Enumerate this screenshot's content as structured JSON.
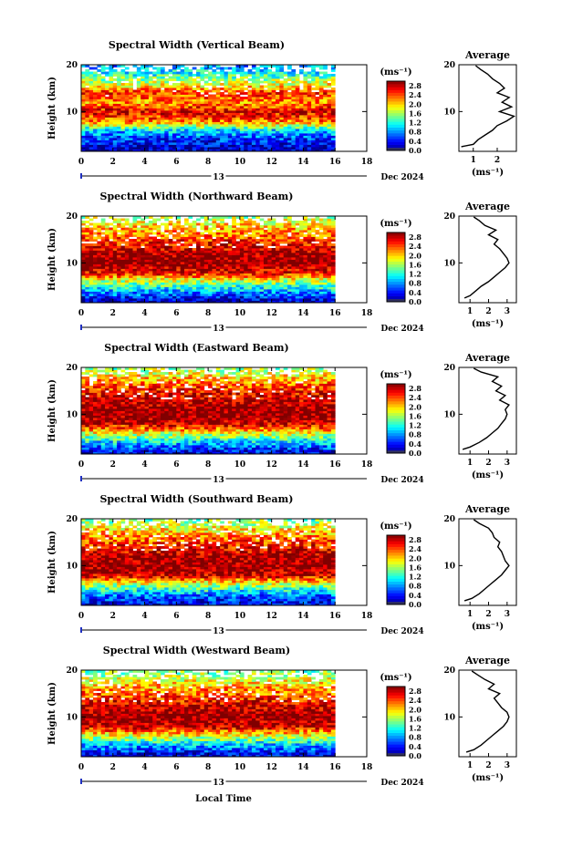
{
  "figure": {
    "xlabel": "Local Time",
    "ylabel": "Height (km)",
    "day_label": "13",
    "date_label": "Dec 2024",
    "colorbar_unit": "(ms⁻¹)",
    "avg_title": "Average",
    "avg_unit": "(ms⁻¹)"
  },
  "chart_data": [
    {
      "type": "heatmap",
      "title": "Spectral Width (Vertical Beam)",
      "xlabel": "",
      "ylabel": "Height (km)",
      "x_ticks": [
        "0",
        "2",
        "4",
        "6",
        "8",
        "10",
        "12",
        "14",
        "16",
        "18"
      ],
      "y_ticks": [
        "10",
        "20"
      ],
      "xlim": [
        0,
        18
      ],
      "ylim": [
        1.5,
        20
      ],
      "data_xlim": [
        0,
        16
      ],
      "colorbar": {
        "ticks": [
          "0.0",
          "0.4",
          "0.8",
          "1.2",
          "1.6",
          "2.0",
          "2.4",
          "2.8"
        ],
        "range": [
          0,
          3.0
        ]
      },
      "profile_bands": [
        {
          "h": 2,
          "v": 0.15
        },
        {
          "h": 4,
          "v": 0.5
        },
        {
          "h": 6,
          "v": 1.0
        },
        {
          "h": 8,
          "v": 2.3
        },
        {
          "h": 10,
          "v": 2.7
        },
        {
          "h": 12,
          "v": 2.2
        },
        {
          "h": 14,
          "v": 2.5
        },
        {
          "h": 16,
          "v": 1.8
        },
        {
          "h": 18,
          "v": 1.2
        },
        {
          "h": 20,
          "v": 0.8
        }
      ],
      "average": {
        "title": "Average",
        "x_ticks": [
          "1",
          "2"
        ],
        "xlim": [
          0.4,
          2.8
        ],
        "heights": [
          2.5,
          3,
          4,
          5,
          6,
          7,
          8,
          9,
          10,
          11,
          12,
          13,
          14,
          15,
          16,
          17,
          18,
          19,
          19.8
        ],
        "values": [
          0.5,
          1.0,
          1.2,
          1.5,
          1.8,
          2.0,
          2.4,
          2.7,
          2.1,
          2.6,
          2.2,
          2.5,
          2.0,
          2.3,
          2.1,
          1.8,
          1.6,
          1.3,
          1.1
        ]
      }
    },
    {
      "type": "heatmap",
      "title": "Spectral Width (Northward Beam)",
      "xlabel": "",
      "ylabel": "Height (km)",
      "x_ticks": [
        "0",
        "2",
        "4",
        "6",
        "8",
        "10",
        "12",
        "14",
        "16",
        "18"
      ],
      "y_ticks": [
        "10",
        "20"
      ],
      "xlim": [
        0,
        18
      ],
      "ylim": [
        1.5,
        20
      ],
      "data_xlim": [
        0,
        16
      ],
      "colorbar": {
        "ticks": [
          "0.0",
          "0.4",
          "0.8",
          "1.2",
          "1.6",
          "2.0",
          "2.4",
          "2.8"
        ],
        "range": [
          0,
          3.0
        ]
      },
      "profile_bands": [
        {
          "h": 2,
          "v": 0.2
        },
        {
          "h": 4,
          "v": 0.9
        },
        {
          "h": 6,
          "v": 1.6
        },
        {
          "h": 8,
          "v": 2.7
        },
        {
          "h": 10,
          "v": 3.0
        },
        {
          "h": 12,
          "v": 2.9
        },
        {
          "h": 14,
          "v": 2.6
        },
        {
          "h": 16,
          "v": 2.3
        },
        {
          "h": 18,
          "v": 2.0
        },
        {
          "h": 20,
          "v": 1.6
        }
      ],
      "average": {
        "title": "Average",
        "x_ticks": [
          "1",
          "2",
          "3"
        ],
        "xlim": [
          0.4,
          3.5
        ],
        "heights": [
          2.5,
          3,
          4,
          5,
          6,
          7,
          8,
          9,
          10,
          11,
          12,
          13,
          14,
          15,
          16,
          17,
          18,
          19,
          19.8
        ],
        "values": [
          0.7,
          1.0,
          1.3,
          1.6,
          2.0,
          2.3,
          2.6,
          2.9,
          3.1,
          3.0,
          2.8,
          2.6,
          2.3,
          2.5,
          2.0,
          2.4,
          1.8,
          1.5,
          1.2
        ]
      }
    },
    {
      "type": "heatmap",
      "title": "Spectral Width (Eastward Beam)",
      "xlabel": "",
      "ylabel": "Height (km)",
      "x_ticks": [
        "0",
        "2",
        "4",
        "6",
        "8",
        "10",
        "12",
        "14",
        "16",
        "18"
      ],
      "y_ticks": [
        "10",
        "20"
      ],
      "xlim": [
        0,
        18
      ],
      "ylim": [
        1.5,
        20
      ],
      "data_xlim": [
        0,
        16
      ],
      "colorbar": {
        "ticks": [
          "0.0",
          "0.4",
          "0.8",
          "1.2",
          "1.6",
          "2.0",
          "2.4",
          "2.8"
        ],
        "range": [
          0,
          3.0
        ]
      },
      "profile_bands": [
        {
          "h": 2,
          "v": 0.3
        },
        {
          "h": 4,
          "v": 1.0
        },
        {
          "h": 6,
          "v": 1.8
        },
        {
          "h": 8,
          "v": 2.8
        },
        {
          "h": 10,
          "v": 3.0
        },
        {
          "h": 12,
          "v": 2.9
        },
        {
          "h": 14,
          "v": 2.7
        },
        {
          "h": 16,
          "v": 2.4
        },
        {
          "h": 18,
          "v": 2.0
        },
        {
          "h": 20,
          "v": 1.5
        }
      ],
      "average": {
        "title": "Average",
        "x_ticks": [
          "1",
          "2",
          "3"
        ],
        "xlim": [
          0.4,
          3.5
        ],
        "heights": [
          2.5,
          3,
          4,
          5,
          6,
          7,
          8,
          9,
          10,
          11,
          12,
          13,
          14,
          15,
          16,
          17,
          18,
          19,
          19.8
        ],
        "values": [
          0.6,
          1.0,
          1.5,
          1.9,
          2.2,
          2.5,
          2.7,
          2.9,
          3.0,
          2.9,
          3.1,
          2.6,
          2.9,
          2.4,
          2.7,
          2.2,
          2.5,
          1.6,
          1.2
        ]
      }
    },
    {
      "type": "heatmap",
      "title": "Spectral Width (Southward Beam)",
      "xlabel": "",
      "ylabel": "Height (km)",
      "x_ticks": [
        "0",
        "2",
        "4",
        "6",
        "8",
        "10",
        "12",
        "14",
        "16",
        "18"
      ],
      "y_ticks": [
        "10",
        "20"
      ],
      "xlim": [
        0,
        18
      ],
      "ylim": [
        1.5,
        20
      ],
      "data_xlim": [
        0,
        16
      ],
      "colorbar": {
        "ticks": [
          "0.0",
          "0.4",
          "0.8",
          "1.2",
          "1.6",
          "2.0",
          "2.4",
          "2.8"
        ],
        "range": [
          0,
          3.0
        ]
      },
      "profile_bands": [
        {
          "h": 2,
          "v": 0.3
        },
        {
          "h": 4,
          "v": 0.8
        },
        {
          "h": 6,
          "v": 1.7
        },
        {
          "h": 8,
          "v": 2.8
        },
        {
          "h": 10,
          "v": 3.0
        },
        {
          "h": 12,
          "v": 2.9
        },
        {
          "h": 14,
          "v": 2.6
        },
        {
          "h": 16,
          "v": 2.3
        },
        {
          "h": 18,
          "v": 1.9
        },
        {
          "h": 20,
          "v": 1.4
        }
      ],
      "average": {
        "title": "Average",
        "x_ticks": [
          "1",
          "2",
          "3"
        ],
        "xlim": [
          0.4,
          3.5
        ],
        "heights": [
          2.5,
          3,
          4,
          5,
          6,
          7,
          8,
          9,
          10,
          11,
          12,
          13,
          14,
          15,
          16,
          17,
          18,
          19,
          19.8
        ],
        "values": [
          0.7,
          1.1,
          1.5,
          1.8,
          2.1,
          2.4,
          2.7,
          2.9,
          3.1,
          2.9,
          2.8,
          2.7,
          2.5,
          2.6,
          2.3,
          2.2,
          2.0,
          1.5,
          1.2
        ]
      }
    },
    {
      "type": "heatmap",
      "title": "Spectral Width (Westward Beam)",
      "xlabel": "Local Time",
      "ylabel": "Height (km)",
      "x_ticks": [
        "0",
        "2",
        "4",
        "6",
        "8",
        "10",
        "12",
        "14",
        "16",
        "18"
      ],
      "y_ticks": [
        "10",
        "20"
      ],
      "xlim": [
        0,
        18
      ],
      "ylim": [
        1.5,
        20
      ],
      "data_xlim": [
        0,
        16
      ],
      "colorbar": {
        "ticks": [
          "0.0",
          "0.4",
          "0.8",
          "1.2",
          "1.6",
          "2.0",
          "2.4",
          "2.8"
        ],
        "range": [
          0,
          3.0
        ]
      },
      "profile_bands": [
        {
          "h": 2,
          "v": 0.3
        },
        {
          "h": 4,
          "v": 0.9
        },
        {
          "h": 6,
          "v": 1.8
        },
        {
          "h": 8,
          "v": 2.8
        },
        {
          "h": 10,
          "v": 3.0
        },
        {
          "h": 12,
          "v": 2.8
        },
        {
          "h": 14,
          "v": 2.5
        },
        {
          "h": 16,
          "v": 2.2
        },
        {
          "h": 18,
          "v": 1.8
        },
        {
          "h": 20,
          "v": 1.4
        }
      ],
      "average": {
        "title": "Average",
        "x_ticks": [
          "1",
          "2",
          "3"
        ],
        "xlim": [
          0.4,
          3.5
        ],
        "heights": [
          2.5,
          3,
          4,
          5,
          6,
          7,
          8,
          9,
          10,
          11,
          12,
          13,
          14,
          15,
          16,
          17,
          18,
          19,
          19.8
        ],
        "values": [
          0.8,
          1.2,
          1.6,
          1.9,
          2.2,
          2.5,
          2.8,
          3.0,
          3.1,
          3.0,
          2.7,
          2.5,
          2.3,
          2.6,
          2.0,
          2.3,
          1.8,
          1.4,
          1.1
        ]
      }
    }
  ]
}
